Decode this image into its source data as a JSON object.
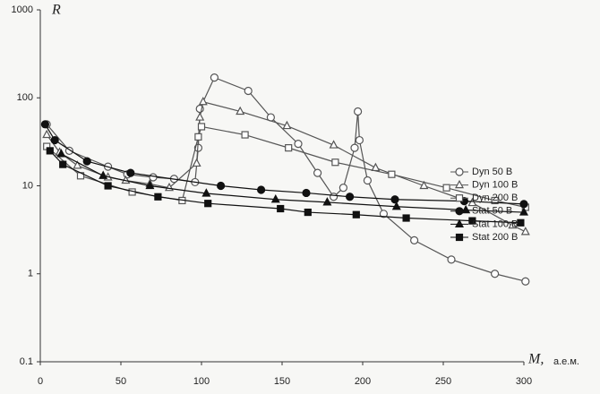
{
  "chart_data": {
    "type": "line",
    "y_label": "R",
    "x_label": "M,",
    "x_unit": "а.е.м.",
    "xlim": [
      0,
      300
    ],
    "xticks": [
      0,
      50,
      100,
      150,
      200,
      250,
      300
    ],
    "ylim": [
      0.1,
      1000
    ],
    "yticks": [
      0.1,
      1,
      10,
      100,
      1000
    ],
    "ylog": true,
    "grid": false,
    "legend": "right",
    "series": [
      {
        "name": "Dyn 50 В",
        "color": "#555555",
        "marker": "circle",
        "filled": false,
        "x": [
          4,
          18,
          42,
          54,
          70,
          83,
          96,
          98,
          99,
          108,
          129,
          143,
          160,
          172,
          182,
          188,
          195,
          197,
          198,
          203,
          213,
          232,
          255,
          282,
          301
        ],
        "values": [
          50,
          25,
          16.5,
          13.5,
          12.5,
          12,
          11,
          27,
          75,
          170,
          120,
          60,
          30,
          14,
          7.5,
          9.5,
          27,
          70,
          33,
          11.5,
          4.8,
          2.4,
          1.45,
          1,
          0.82
        ]
      },
      {
        "name": "Dyn 100 В",
        "color": "#555555",
        "marker": "triangle",
        "filled": false,
        "x": [
          4,
          12,
          23,
          42,
          53,
          68,
          80,
          97,
          99,
          101,
          124,
          153,
          182,
          208,
          238,
          268,
          293,
          301
        ],
        "values": [
          38,
          24,
          17,
          12.5,
          11.5,
          10.5,
          9.5,
          18,
          60,
          90,
          70,
          48,
          29,
          16,
          10,
          6.4,
          3.55,
          3
        ]
      },
      {
        "name": "Dyn 200 В",
        "color": "#555555",
        "marker": "square",
        "filled": false,
        "x": [
          4,
          25,
          57,
          88,
          98,
          100,
          127,
          154,
          183,
          218,
          252,
          282,
          301
        ],
        "values": [
          28,
          13,
          8.5,
          6.8,
          36,
          47,
          38,
          27,
          18.5,
          13.5,
          9.5,
          6.8,
          5.7
        ]
      },
      {
        "name": "Stat 50 В",
        "color": "#111111",
        "marker": "circle",
        "filled": true,
        "x": [
          3,
          9,
          29,
          56,
          112,
          137,
          165,
          192,
          220,
          263,
          300
        ],
        "values": [
          50,
          33,
          19,
          14,
          10,
          9,
          8.3,
          7.5,
          7,
          6.7,
          6.2
        ]
      },
      {
        "name": "Stat 100 В",
        "color": "#111111",
        "marker": "triangle",
        "filled": true,
        "x": [
          13,
          39,
          68,
          103,
          146,
          178,
          221,
          264,
          300
        ],
        "values": [
          23,
          13,
          10,
          8.2,
          7,
          6.5,
          5.8,
          5.3,
          5
        ]
      },
      {
        "name": "Stat 200 В",
        "color": "#111111",
        "marker": "square",
        "filled": true,
        "x": [
          6,
          14,
          42,
          73,
          104,
          149,
          166,
          196,
          227,
          268,
          298
        ],
        "values": [
          25,
          17.5,
          10,
          7.5,
          6.3,
          5.5,
          5,
          4.7,
          4.3,
          4,
          3.8
        ]
      }
    ]
  }
}
